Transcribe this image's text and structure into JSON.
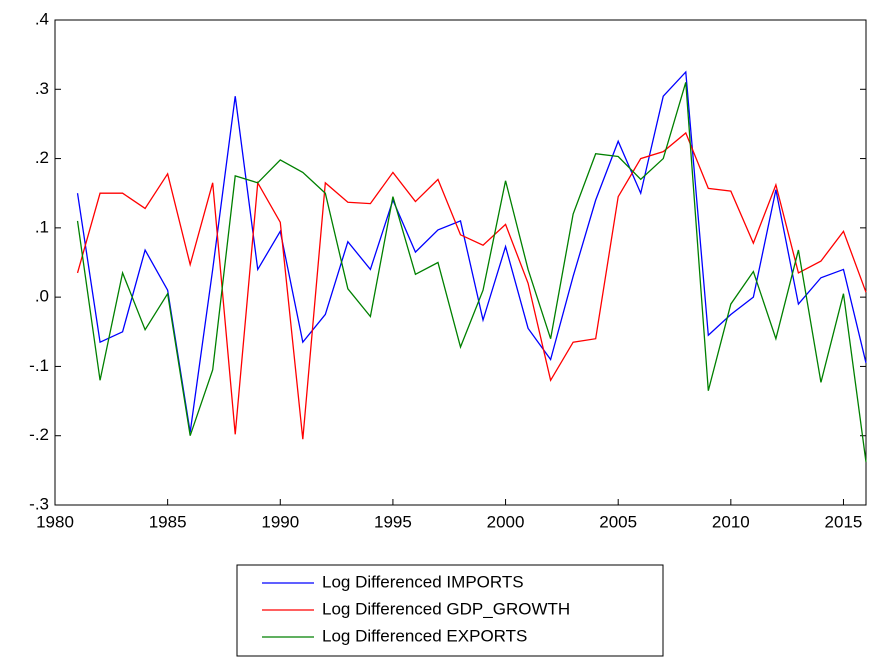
{
  "chart_data": {
    "type": "line",
    "x": [
      1981,
      1982,
      1983,
      1984,
      1985,
      1986,
      1987,
      1988,
      1989,
      1990,
      1991,
      1992,
      1993,
      1994,
      1995,
      1996,
      1997,
      1998,
      1999,
      2000,
      2001,
      2002,
      2003,
      2004,
      2005,
      2006,
      2007,
      2008,
      2009,
      2010,
      2011,
      2012,
      2013,
      2014,
      2015,
      2016
    ],
    "series": [
      {
        "name": "Log Differenced IMPORTS",
        "color": "#0000ff",
        "values": [
          0.15,
          -0.065,
          -0.05,
          0.068,
          0.01,
          -0.195,
          0.04,
          0.29,
          0.04,
          0.095,
          -0.065,
          -0.025,
          0.08,
          0.04,
          0.14,
          0.065,
          0.097,
          0.11,
          -0.033,
          0.073,
          -0.045,
          -0.09,
          0.03,
          0.14,
          0.225,
          0.15,
          0.29,
          0.325,
          -0.055,
          -0.025,
          0.0,
          0.155,
          -0.01,
          0.028,
          0.04,
          -0.095
        ]
      },
      {
        "name": "Log Differenced GDP_GROWTH",
        "color": "#ff0000",
        "values": [
          0.035,
          0.15,
          0.15,
          0.128,
          0.178,
          0.047,
          0.165,
          -0.198,
          0.165,
          0.108,
          -0.205,
          0.165,
          0.137,
          0.135,
          0.18,
          0.138,
          0.17,
          0.09,
          0.075,
          0.105,
          0.02,
          -0.12,
          -0.065,
          -0.06,
          0.145,
          0.2,
          0.21,
          0.237,
          0.157,
          0.153,
          0.078,
          0.162,
          0.035,
          0.052,
          0.095,
          0.007
        ]
      },
      {
        "name": "Log Differenced EXPORTS",
        "color": "#008000",
        "values": [
          0.11,
          -0.12,
          0.035,
          -0.047,
          0.005,
          -0.2,
          -0.105,
          0.175,
          0.165,
          0.198,
          0.18,
          0.15,
          0.012,
          -0.028,
          0.145,
          0.033,
          0.05,
          -0.072,
          0.01,
          0.168,
          0.04,
          -0.06,
          0.12,
          0.207,
          0.203,
          0.17,
          0.2,
          0.31,
          -0.135,
          -0.01,
          0.037,
          -0.06,
          0.068,
          -0.123,
          0.005,
          -0.238
        ]
      }
    ],
    "xlim": [
      1980,
      2016
    ],
    "xticks": [
      1980,
      1985,
      1990,
      1995,
      2000,
      2005,
      2010,
      2015
    ],
    "ylim": [
      -0.3,
      0.4
    ],
    "yticks": [
      {
        "value": -0.3,
        "label": "-.3"
      },
      {
        "value": -0.2,
        "label": "-.2"
      },
      {
        "value": -0.1,
        "label": "-.1"
      },
      {
        "value": 0,
        "label": ".0"
      },
      {
        "value": 0.1,
        "label": ".1"
      },
      {
        "value": 0.2,
        "label": ".2"
      },
      {
        "value": 0.3,
        "label": ".3"
      },
      {
        "value": 0.4,
        "label": ".4"
      }
    ],
    "grid": false,
    "legend": "bottom"
  }
}
